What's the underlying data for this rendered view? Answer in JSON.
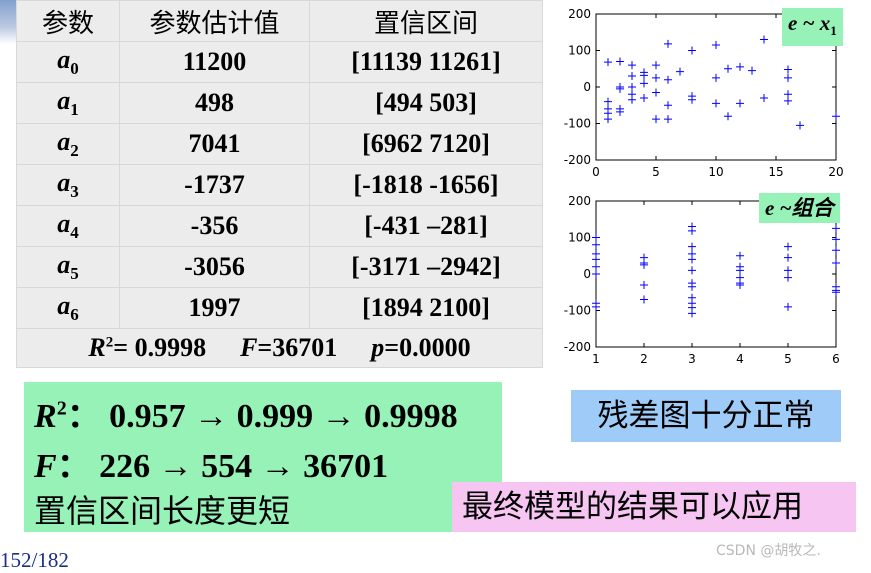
{
  "table": {
    "headers": [
      "参数",
      "参数估计值",
      "置信区间"
    ],
    "rows": [
      {
        "sym": "a",
        "sub": "0",
        "estimate": "11200",
        "interval": "[11139  11261]"
      },
      {
        "sym": "a",
        "sub": "1",
        "estimate": "498",
        "interval": "[494  503]"
      },
      {
        "sym": "a",
        "sub": "2",
        "estimate": "7041",
        "interval": "[6962  7120]"
      },
      {
        "sym": "a",
        "sub": "3",
        "estimate": "-1737",
        "interval": "[-1818  -1656]"
      },
      {
        "sym": "a",
        "sub": "4",
        "estimate": "-356",
        "interval": "[-431  –281]"
      },
      {
        "sym": "a",
        "sub": "5",
        "estimate": "-3056",
        "interval": "[-3171 –2942]"
      },
      {
        "sym": "a",
        "sub": "6",
        "estimate": "1997",
        "interval": "[1894  2100]"
      }
    ],
    "summary": {
      "r2_sym": "R",
      "r2_sup": "2",
      "r2_val": "= 0.9998",
      "f_sym": "F",
      "f_val": "=36701",
      "p_sym": "p",
      "p_val": "=0.0000"
    }
  },
  "chart_data": [
    {
      "type": "scatter",
      "title": "e ~ x1",
      "label_main": "e ~ x",
      "label_sub": "1",
      "xlim": [
        0,
        20
      ],
      "ylim": [
        -200,
        200
      ],
      "xticks": [
        0,
        5,
        10,
        15,
        20
      ],
      "yticks": [
        200,
        100,
        0,
        -100,
        -200
      ],
      "grid": false,
      "marker": "+",
      "color": "#0000ff",
      "points": [
        [
          1,
          68
        ],
        [
          1,
          -40
        ],
        [
          1,
          -60
        ],
        [
          1,
          -72
        ],
        [
          1,
          -88
        ],
        [
          2,
          70
        ],
        [
          2,
          0
        ],
        [
          2,
          -5
        ],
        [
          2,
          -60
        ],
        [
          2,
          -68
        ],
        [
          3,
          60
        ],
        [
          3,
          30
        ],
        [
          3,
          0
        ],
        [
          3,
          -20
        ],
        [
          3,
          -35
        ],
        [
          4,
          40
        ],
        [
          4,
          32
        ],
        [
          4,
          10
        ],
        [
          4,
          -30
        ],
        [
          5,
          60
        ],
        [
          5,
          25
        ],
        [
          5,
          -15
        ],
        [
          5,
          -88
        ],
        [
          6,
          118
        ],
        [
          6,
          20
        ],
        [
          6,
          -50
        ],
        [
          6,
          -88
        ],
        [
          7,
          42
        ],
        [
          8,
          100
        ],
        [
          8,
          -25
        ],
        [
          8,
          -35
        ],
        [
          10,
          115
        ],
        [
          10,
          25
        ],
        [
          10,
          -45
        ],
        [
          11,
          50
        ],
        [
          11,
          -80
        ],
        [
          12,
          55
        ],
        [
          12,
          -45
        ],
        [
          13,
          45
        ],
        [
          14,
          130
        ],
        [
          14,
          -30
        ],
        [
          16,
          48
        ],
        [
          16,
          25
        ],
        [
          16,
          -20
        ],
        [
          16,
          -38
        ],
        [
          17,
          -105
        ],
        [
          20,
          -80
        ]
      ]
    },
    {
      "type": "scatter",
      "title": "e ~组合",
      "label_main": "e ~组合",
      "label_sub": "",
      "xlim": [
        1,
        6
      ],
      "ylim": [
        -200,
        200
      ],
      "xticks": [
        1,
        2,
        3,
        4,
        5,
        6
      ],
      "yticks": [
        200,
        100,
        0,
        -100,
        -200
      ],
      "grid": false,
      "marker": "+",
      "color": "#0000ff",
      "points": [
        [
          1,
          100
        ],
        [
          1,
          80
        ],
        [
          1,
          55
        ],
        [
          1,
          40
        ],
        [
          1,
          20
        ],
        [
          1,
          0
        ],
        [
          1,
          -80
        ],
        [
          1,
          -90
        ],
        [
          2,
          45
        ],
        [
          2,
          30
        ],
        [
          2,
          25
        ],
        [
          2,
          -30
        ],
        [
          2,
          -70
        ],
        [
          3,
          130
        ],
        [
          3,
          118
        ],
        [
          3,
          75
        ],
        [
          3,
          55
        ],
        [
          3,
          40
        ],
        [
          3,
          10
        ],
        [
          3,
          -25
        ],
        [
          3,
          -35
        ],
        [
          3,
          -65
        ],
        [
          3,
          -80
        ],
        [
          3,
          -92
        ],
        [
          3,
          -108
        ],
        [
          4,
          50
        ],
        [
          4,
          20
        ],
        [
          4,
          10
        ],
        [
          4,
          -10
        ],
        [
          4,
          -25
        ],
        [
          4,
          -30
        ],
        [
          5,
          75
        ],
        [
          5,
          45
        ],
        [
          5,
          10
        ],
        [
          5,
          -10
        ],
        [
          5,
          -90
        ],
        [
          6,
          125
        ],
        [
          6,
          95
        ],
        [
          6,
          65
        ],
        [
          6,
          30
        ],
        [
          6,
          -35
        ],
        [
          6,
          -45
        ],
        [
          6,
          -50
        ]
      ]
    }
  ],
  "green_box": {
    "line1_sym": "R",
    "line1_sup": "2",
    "line1_text": "：  0.957 → 0.999 → 0.9998",
    "line2_sym": "F",
    "line2_text": "：  226 → 554 → 36701",
    "line3_text": "置信区间长度更短"
  },
  "blue_box": {
    "text": "残差图十分正常"
  },
  "pink_box": {
    "text": "最终模型的结果可以应用"
  },
  "page_number": "152/182",
  "watermark": "CSDN @胡牧之."
}
